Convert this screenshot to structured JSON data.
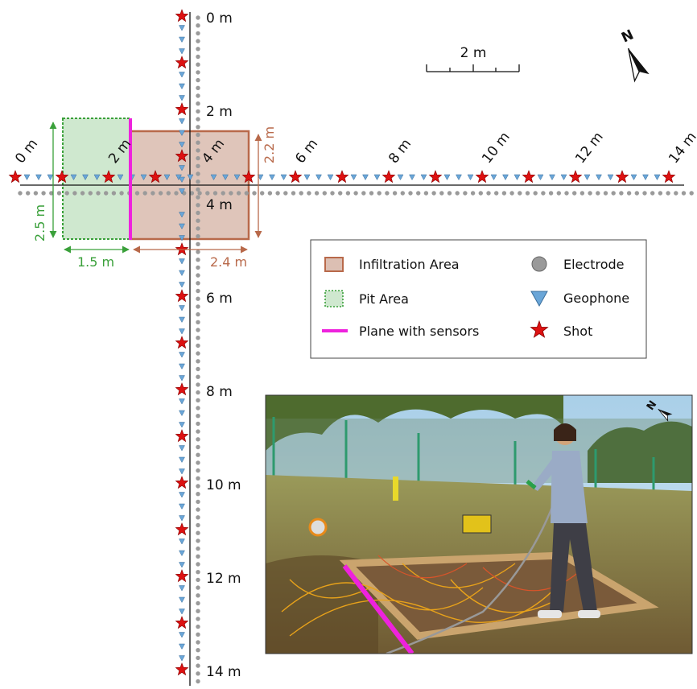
{
  "north_label": "N",
  "scale_bar_label": "2 m",
  "horizontal_profile_labels": [
    "0 m",
    "2 m",
    "4 m",
    "6 m",
    "8 m",
    "10 m",
    "12 m",
    "14 m"
  ],
  "vertical_profile_labels": [
    "0 m",
    "2 m",
    "4 m",
    "6 m",
    "8 m",
    "10 m",
    "12 m",
    "14 m"
  ],
  "dimensions": {
    "pit_height": "2.5 m",
    "pit_width": "1.5 m",
    "infiltration_height": "2.2 m",
    "infiltration_width": "2.4 m"
  },
  "legend": {
    "infiltration": "Infiltration Area",
    "pit": "Pit Area",
    "plane": "Plane with sensors",
    "electrode": "Electrode",
    "geophone": "Geophone",
    "shot": "Shot"
  },
  "colors": {
    "infiltration_fill": "#dcbfb3",
    "infiltration_stroke": "#b8694a",
    "pit_fill": "#cfe8cf",
    "pit_stroke": "#3aa03a",
    "plane": "#ee22dd",
    "electrode": "#9a9a9a",
    "geophone": "#6aa6d8",
    "shot": "#dd1111"
  },
  "photo": {
    "north_label": "N"
  }
}
